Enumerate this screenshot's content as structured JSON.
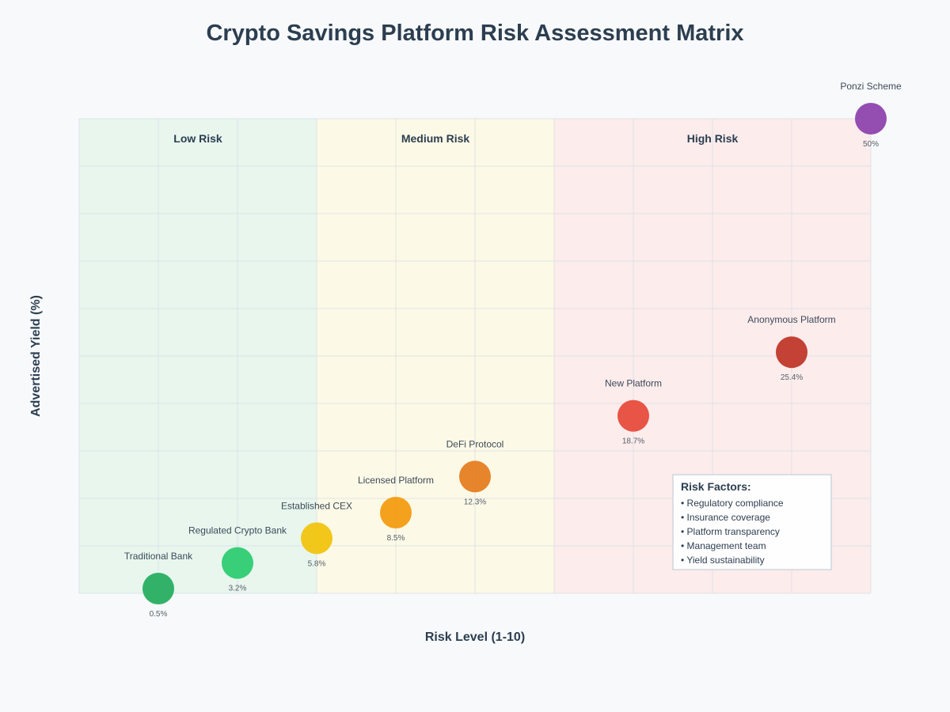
{
  "chart_data": {
    "type": "scatter",
    "title": "Crypto Savings Platform Risk Assessment Matrix",
    "xlabel": "Risk Level (1-10)",
    "ylabel": "Advertised Yield (%)",
    "xlim": [
      0,
      10
    ],
    "ylim": [
      0,
      50
    ],
    "grid": true,
    "zones": [
      {
        "label": "Low Risk",
        "from": 0,
        "to": 3,
        "color": "#e8f6ee"
      },
      {
        "label": "Medium Risk",
        "from": 3,
        "to": 6,
        "color": "#fcf9e6"
      },
      {
        "label": "High Risk",
        "from": 6,
        "to": 10,
        "color": "#fcecec"
      }
    ],
    "points": [
      {
        "name": "Traditional Bank",
        "x": 1,
        "y": 0.5,
        "value_label": "0.5%",
        "color": "#27ae60"
      },
      {
        "name": "Regulated Crypto Bank",
        "x": 2,
        "y": 3.2,
        "value_label": "3.2%",
        "color": "#2ecc71"
      },
      {
        "name": "Established CEX",
        "x": 3,
        "y": 5.8,
        "value_label": "5.8%",
        "color": "#f1c40f"
      },
      {
        "name": "Licensed Platform",
        "x": 4,
        "y": 8.5,
        "value_label": "8.5%",
        "color": "#f39c12"
      },
      {
        "name": "DeFi Protocol",
        "x": 5,
        "y": 12.3,
        "value_label": "12.3%",
        "color": "#e67e22"
      },
      {
        "name": "New Platform",
        "x": 7,
        "y": 18.7,
        "value_label": "18.7%",
        "color": "#e74c3c"
      },
      {
        "name": "Anonymous Platform",
        "x": 9,
        "y": 25.4,
        "value_label": "25.4%",
        "color": "#c0392b"
      },
      {
        "name": "Ponzi Scheme",
        "x": 10,
        "y": 50,
        "value_label": "50%",
        "color": "#8e44ad"
      }
    ],
    "legend": {
      "title": "Risk Factors:",
      "items": [
        "• Regulatory compliance",
        "• Insurance coverage",
        "• Platform transparency",
        "• Management team",
        "• Yield sustainability"
      ],
      "placement": "bottom-right"
    }
  }
}
